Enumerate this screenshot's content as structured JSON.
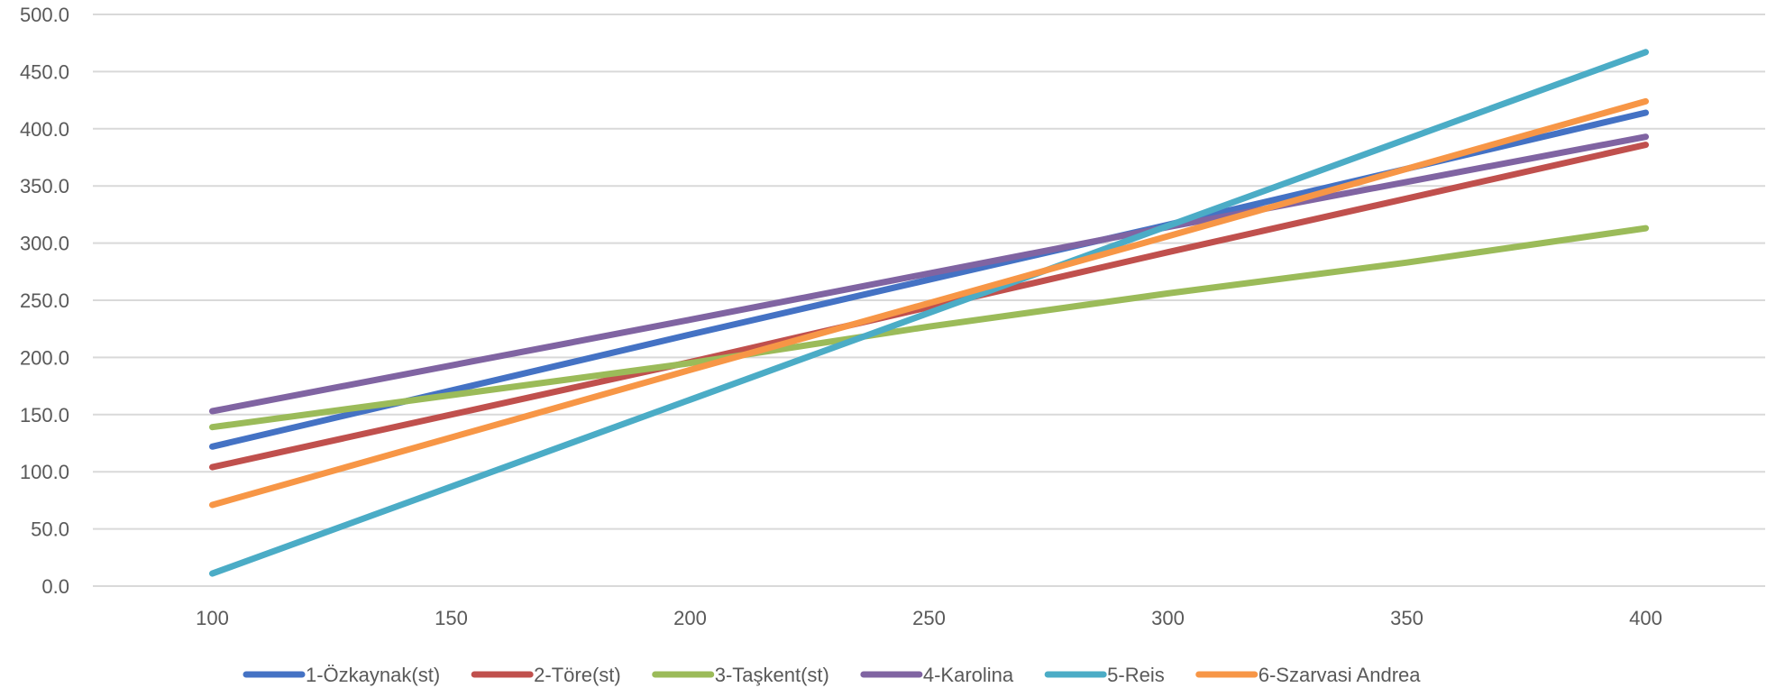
{
  "chart_data": {
    "type": "line",
    "title": "",
    "xlabel": "",
    "ylabel": "",
    "x": [
      100,
      400
    ],
    "xlim": [
      75,
      425
    ],
    "ylim": [
      0,
      500
    ],
    "x_ticks": [
      "100",
      "150",
      "200",
      "250",
      "300",
      "350",
      "400"
    ],
    "y_ticks": [
      "0.0",
      "50.0",
      "100.0",
      "150.0",
      "200.0",
      "250.0",
      "300.0",
      "350.0",
      "400.0",
      "450.0",
      "500.0"
    ],
    "grid": true,
    "legend_position": "bottom",
    "series": [
      {
        "name": "1-Özkaynak(st)",
        "color": "#4472C4",
        "points": [
          [
            100,
            122
          ],
          [
            200,
            220
          ],
          [
            300,
            316
          ],
          [
            400,
            414
          ]
        ]
      },
      {
        "name": "2-Töre(st)",
        "color": "#C0504D",
        "points": [
          [
            100,
            104
          ],
          [
            200,
            196
          ],
          [
            300,
            292
          ],
          [
            400,
            386
          ]
        ]
      },
      {
        "name": "3-Taşkent(st)",
        "color": "#9BBB59",
        "points": [
          [
            100,
            139
          ],
          [
            200,
            195
          ],
          [
            250,
            227
          ],
          [
            300,
            256
          ],
          [
            350,
            283
          ],
          [
            400,
            313
          ]
        ]
      },
      {
        "name": "4-Karolina",
        "color": "#8064A2",
        "points": [
          [
            100,
            153
          ],
          [
            200,
            233
          ],
          [
            300,
            314
          ],
          [
            400,
            393
          ]
        ]
      },
      {
        "name": "5-Reis",
        "color": "#4BACC6",
        "points": [
          [
            100,
            11
          ],
          [
            200,
            163
          ],
          [
            300,
            315
          ],
          [
            400,
            467
          ]
        ]
      },
      {
        "name": "6-Szarvasi Andrea",
        "color": "#F79646",
        "points": [
          [
            100,
            71
          ],
          [
            200,
            189
          ],
          [
            300,
            306
          ],
          [
            400,
            424
          ]
        ]
      }
    ]
  }
}
